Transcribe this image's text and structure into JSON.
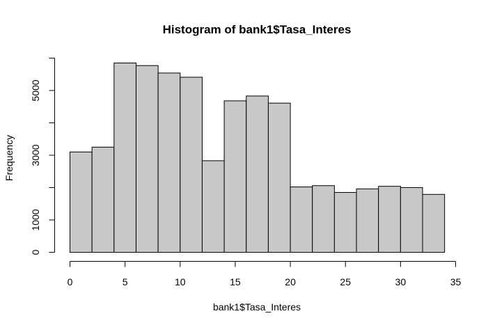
{
  "chart_data": {
    "type": "bar",
    "title": "Histogram of bank1$Tasa_Interes",
    "xlabel": "bank1$Tasa_Interes",
    "ylabel": "Frequency",
    "bin_edges": [
      0,
      2,
      4,
      6,
      8,
      10,
      12,
      14,
      16,
      18,
      20,
      22,
      24,
      26,
      28,
      30,
      32,
      34
    ],
    "values": [
      3100,
      3250,
      5850,
      5770,
      5540,
      5410,
      2830,
      4680,
      4830,
      4610,
      2020,
      2060,
      1850,
      1960,
      2040,
      2000,
      1790
    ],
    "xlim": [
      0,
      35
    ],
    "ylim": [
      0,
      6000
    ],
    "x_ticks": [
      "0",
      "5",
      "10",
      "15",
      "20",
      "25",
      "30",
      "35"
    ],
    "y_ticks": [
      "0",
      "1000",
      "3000",
      "5000"
    ],
    "bar_color": "#c8c8c8",
    "grid": false,
    "legend": "none"
  }
}
